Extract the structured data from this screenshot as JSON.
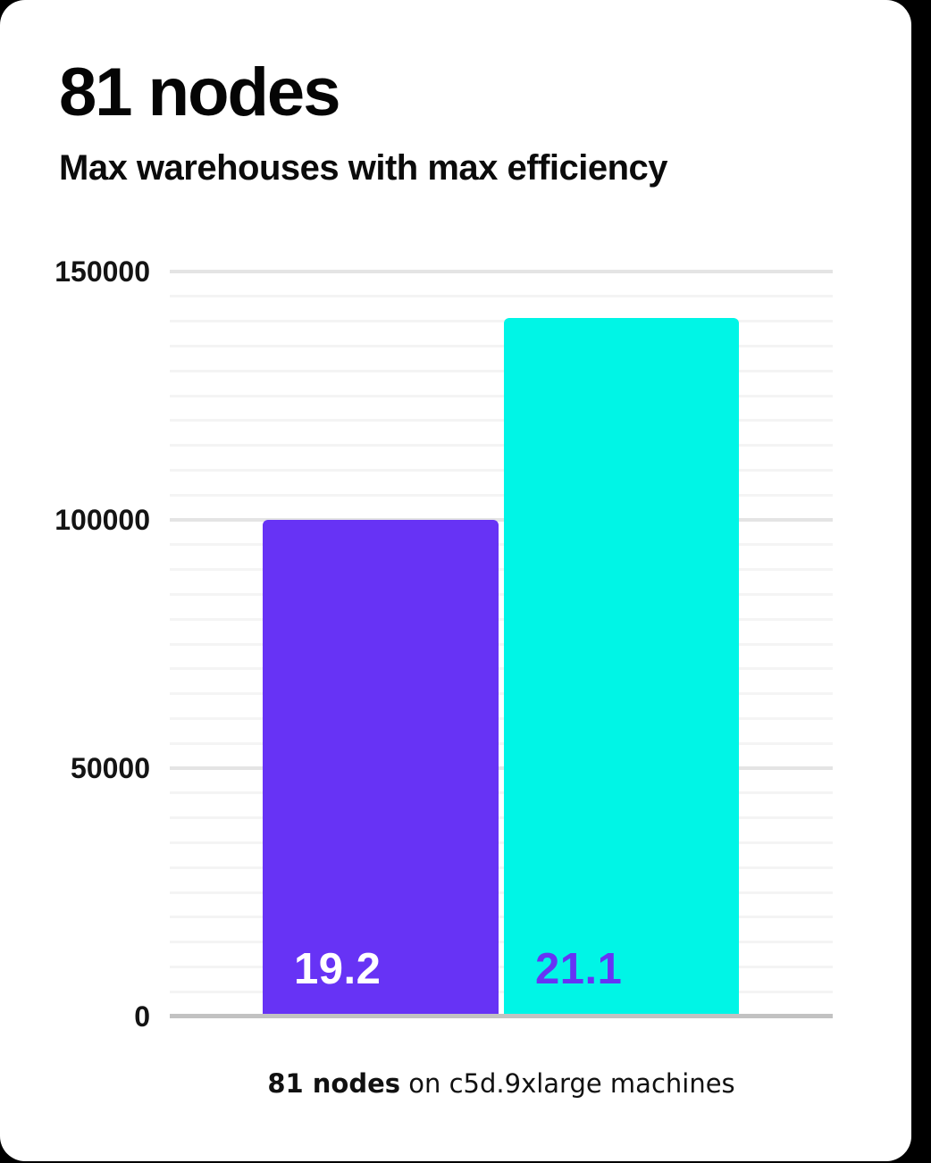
{
  "header": {
    "title": "81 nodes",
    "subtitle": "Max warehouses with max efficiency"
  },
  "caption": {
    "bold": "81 nodes",
    "rest": " on c5d.9xlarge machines"
  },
  "colors": {
    "page_background": "#000000",
    "card_background": "#ffffff",
    "accent_purple": "#6733F5",
    "accent_cyan": "#00F5E6",
    "grid_major": "#e4e4e4",
    "grid_minor": "#f4f4f4",
    "axis_line": "#c2c2c2",
    "text": "#0b0b0b"
  },
  "chart_data": {
    "type": "bar",
    "title": "81 nodes",
    "subtitle": "Max warehouses with max efficiency",
    "caption": "81 nodes on c5d.9xlarge machines",
    "categories": [
      "19.2",
      "21.1"
    ],
    "series": [
      {
        "name": "bar-1",
        "value": 99600,
        "bar_label": "19.2",
        "color": "#6733F5",
        "label_color": "#ffffff"
      },
      {
        "name": "bar-2",
        "value": 140300,
        "bar_label": "21.1",
        "color": "#00F5E6",
        "label_color": "#6733F5"
      }
    ],
    "xlabel": "",
    "ylabel": "",
    "ylim": [
      0,
      150000
    ],
    "y_ticks": [
      0,
      50000,
      100000,
      150000
    ],
    "minor_gridline_step": 5000,
    "grid": "horizontal",
    "legend": "none"
  }
}
